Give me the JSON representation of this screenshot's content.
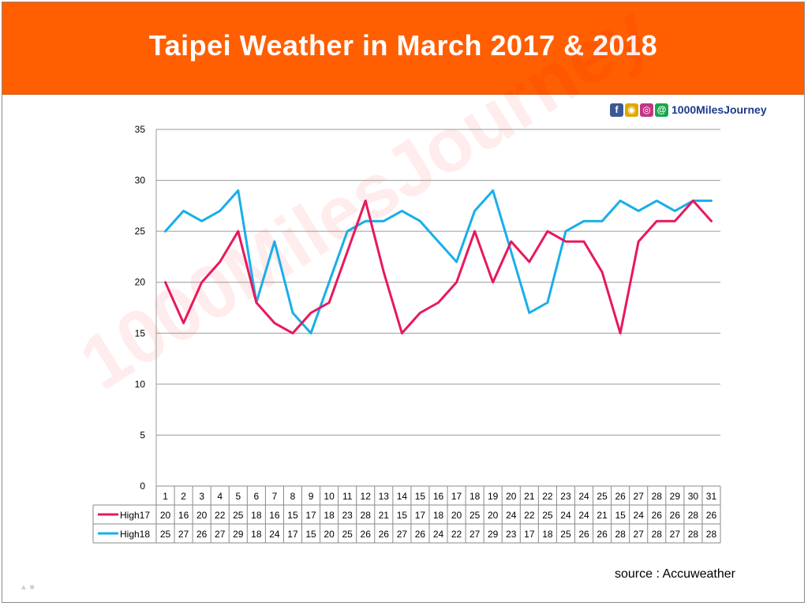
{
  "title": "Taipei Weather in March 2017 & 2018",
  "brand": {
    "icons": [
      "facebook-icon",
      "chrome-icon",
      "instagram-icon",
      "at-icon"
    ],
    "text": "1000MilesJourney"
  },
  "watermark": "1000MilesJourney",
  "source": "source : Accuweather",
  "colors": {
    "banner": "#ff5f00",
    "high17": "#e8185c",
    "high18": "#19aeea",
    "grid": "#9a9a9a"
  },
  "chart_data": {
    "type": "line",
    "title": "Taipei Weather in March 2017 & 2018",
    "xlabel": "",
    "ylabel": "",
    "ylim": [
      0,
      35
    ],
    "yticks": [
      0,
      5,
      10,
      15,
      20,
      25,
      30,
      35
    ],
    "grid": true,
    "legend": "data-table-rows",
    "categories": [
      "1",
      "2",
      "3",
      "4",
      "5",
      "6",
      "7",
      "8",
      "9",
      "10",
      "11",
      "12",
      "13",
      "14",
      "15",
      "16",
      "17",
      "18",
      "19",
      "20",
      "21",
      "22",
      "23",
      "24",
      "25",
      "26",
      "27",
      "28",
      "29",
      "30",
      "31"
    ],
    "series": [
      {
        "name": "High17",
        "color": "#e8185c",
        "values": [
          20,
          16,
          20,
          22,
          25,
          18,
          16,
          15,
          17,
          18,
          23,
          28,
          21,
          15,
          17,
          18,
          20,
          25,
          20,
          24,
          22,
          25,
          24,
          24,
          21,
          15,
          24,
          26,
          26,
          28,
          26
        ]
      },
      {
        "name": "High18",
        "color": "#19aeea",
        "values": [
          25,
          27,
          26,
          27,
          29,
          18,
          24,
          17,
          15,
          20,
          25,
          26,
          26,
          27,
          26,
          24,
          22,
          27,
          29,
          23,
          17,
          18,
          25,
          26,
          26,
          28,
          27,
          28,
          27,
          28,
          28
        ]
      }
    ]
  }
}
